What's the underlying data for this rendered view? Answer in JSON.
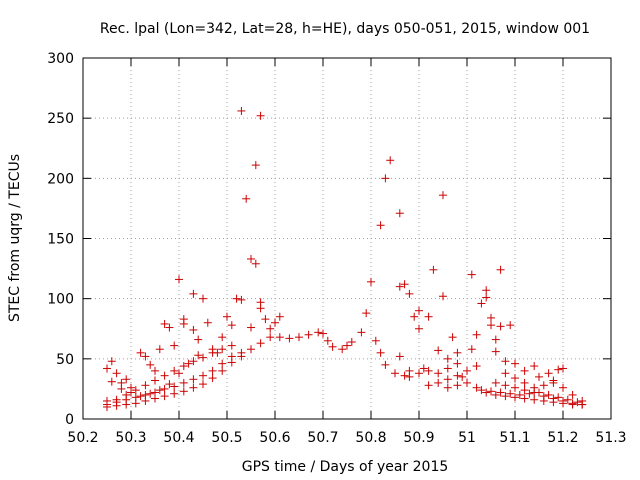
{
  "chart_data": {
    "type": "scatter",
    "title": "Rec. lpal (Lon=342, Lat=28, h=HE), days 050-051, 2015, window 001",
    "xlabel": "GPS time / Days of year 2015",
    "ylabel": "STEC from uqrg / TECUs",
    "xlim": [
      50.2,
      51.3
    ],
    "ylim": [
      0,
      300
    ],
    "xticks": [
      "50.2",
      "50.3",
      "50.4",
      "50.5",
      "50.6",
      "50.7",
      "50.8",
      "50.9",
      "51",
      "51.1",
      "51.2",
      "51.3"
    ],
    "yticks": [
      "0",
      "50",
      "100",
      "150",
      "200",
      "250",
      "300"
    ],
    "grid": true,
    "marker": "+",
    "marker_color": "#cc0000",
    "series": [
      {
        "points": [
          [
            50.25,
            42
          ],
          [
            50.26,
            48
          ],
          [
            50.27,
            38
          ],
          [
            50.28,
            30
          ],
          [
            50.29,
            33
          ],
          [
            50.3,
            26
          ],
          [
            50.32,
            55
          ],
          [
            50.33,
            52
          ],
          [
            50.34,
            45
          ],
          [
            50.35,
            40
          ],
          [
            50.36,
            58
          ],
          [
            50.37,
            79
          ],
          [
            50.38,
            76
          ],
          [
            50.39,
            61
          ],
          [
            50.4,
            116
          ],
          [
            50.41,
            83
          ],
          [
            50.41,
            79
          ],
          [
            50.43,
            104
          ],
          [
            50.43,
            74
          ],
          [
            50.44,
            66
          ],
          [
            50.45,
            100
          ],
          [
            50.46,
            80
          ],
          [
            50.47,
            58
          ],
          [
            50.48,
            55
          ],
          [
            50.49,
            68
          ],
          [
            50.5,
            85
          ],
          [
            50.51,
            78
          ],
          [
            50.52,
            100
          ],
          [
            50.53,
            256
          ],
          [
            50.53,
            99
          ],
          [
            50.54,
            183
          ],
          [
            50.55,
            133
          ],
          [
            50.55,
            76
          ],
          [
            50.56,
            211
          ],
          [
            50.56,
            129
          ],
          [
            50.57,
            252
          ],
          [
            50.57,
            97
          ],
          [
            50.57,
            92
          ],
          [
            50.58,
            83
          ],
          [
            50.59,
            75
          ],
          [
            50.6,
            80
          ],
          [
            50.61,
            85
          ],
          [
            50.25,
            15
          ],
          [
            50.27,
            14
          ],
          [
            50.29,
            16
          ],
          [
            50.31,
            18
          ],
          [
            50.33,
            20
          ],
          [
            50.35,
            22
          ],
          [
            50.37,
            25
          ],
          [
            50.39,
            27
          ],
          [
            50.41,
            30
          ],
          [
            50.43,
            33
          ],
          [
            50.45,
            36
          ],
          [
            50.47,
            40
          ],
          [
            50.49,
            46
          ],
          [
            50.51,
            52
          ],
          [
            50.53,
            55
          ],
          [
            50.55,
            58
          ],
          [
            50.57,
            63
          ],
          [
            50.59,
            68
          ],
          [
            50.61,
            68
          ],
          [
            50.63,
            67
          ],
          [
            50.65,
            68
          ],
          [
            50.67,
            70
          ],
          [
            50.69,
            72
          ],
          [
            50.7,
            71
          ],
          [
            50.71,
            65
          ],
          [
            50.72,
            60
          ],
          [
            50.74,
            58
          ],
          [
            50.75,
            61
          ],
          [
            50.76,
            64
          ],
          [
            50.78,
            72
          ],
          [
            50.79,
            88
          ],
          [
            50.8,
            114
          ],
          [
            50.81,
            65
          ],
          [
            50.82,
            161
          ],
          [
            50.82,
            55
          ],
          [
            50.83,
            200
          ],
          [
            50.83,
            45
          ],
          [
            50.84,
            215
          ],
          [
            50.85,
            38
          ],
          [
            50.86,
            171
          ],
          [
            50.86,
            110
          ],
          [
            50.87,
            112
          ],
          [
            50.86,
            52
          ],
          [
            50.87,
            36
          ],
          [
            50.88,
            104
          ],
          [
            50.88,
            40
          ],
          [
            50.89,
            85
          ],
          [
            50.9,
            90
          ],
          [
            50.9,
            75
          ],
          [
            50.91,
            42
          ],
          [
            50.92,
            85
          ],
          [
            50.93,
            124
          ],
          [
            50.94,
            57
          ],
          [
            50.95,
            186
          ],
          [
            50.95,
            102
          ],
          [
            50.96,
            50
          ],
          [
            50.97,
            68
          ],
          [
            50.98,
            55
          ],
          [
            50.99,
            35
          ],
          [
            51.01,
            120
          ],
          [
            51.01,
            58
          ],
          [
            51.02,
            70
          ],
          [
            51.03,
            96
          ],
          [
            51.04,
            107
          ],
          [
            51.04,
            101
          ],
          [
            51.05,
            84
          ],
          [
            51.05,
            78
          ],
          [
            51.06,
            66
          ],
          [
            51.06,
            56
          ],
          [
            51.07,
            124
          ],
          [
            51.07,
            77
          ],
          [
            51.08,
            48
          ],
          [
            51.09,
            78
          ],
          [
            51.1,
            46
          ],
          [
            51.12,
            40
          ],
          [
            51.14,
            44
          ],
          [
            51.15,
            35
          ],
          [
            51.17,
            38
          ],
          [
            51.18,
            32
          ],
          [
            51.19,
            41
          ],
          [
            51.2,
            42
          ],
          [
            50.25,
            10
          ],
          [
            50.27,
            11
          ],
          [
            50.29,
            12
          ],
          [
            50.31,
            13
          ],
          [
            50.33,
            15
          ],
          [
            50.35,
            17
          ],
          [
            50.37,
            19
          ],
          [
            50.39,
            21
          ],
          [
            50.41,
            23
          ],
          [
            50.43,
            26
          ],
          [
            50.45,
            29
          ],
          [
            50.47,
            34
          ],
          [
            50.49,
            40
          ],
          [
            50.51,
            47
          ],
          [
            50.53,
            52
          ],
          [
            50.25,
            12
          ],
          [
            50.27,
            16
          ],
          [
            50.29,
            20
          ],
          [
            50.31,
            24
          ],
          [
            50.33,
            28
          ],
          [
            50.35,
            32
          ],
          [
            50.37,
            36
          ],
          [
            50.39,
            40
          ],
          [
            50.41,
            44
          ],
          [
            50.43,
            48
          ],
          [
            50.45,
            51
          ],
          [
            50.47,
            55
          ],
          [
            50.49,
            58
          ],
          [
            50.51,
            61
          ],
          [
            50.26,
            31
          ],
          [
            50.28,
            25
          ],
          [
            50.3,
            22
          ],
          [
            50.32,
            19
          ],
          [
            50.34,
            21
          ],
          [
            50.36,
            24
          ],
          [
            50.38,
            29
          ],
          [
            50.4,
            38
          ],
          [
            50.42,
            46
          ],
          [
            50.44,
            53
          ],
          [
            50.92,
            28
          ],
          [
            50.94,
            30
          ],
          [
            50.96,
            33
          ],
          [
            50.98,
            36
          ],
          [
            51.0,
            40
          ],
          [
            51.02,
            44
          ],
          [
            50.96,
            26
          ],
          [
            50.98,
            28
          ],
          [
            51.0,
            30
          ],
          [
            51.02,
            26
          ],
          [
            51.04,
            22
          ],
          [
            51.06,
            20
          ],
          [
            51.08,
            19
          ],
          [
            51.1,
            18
          ],
          [
            51.12,
            17
          ],
          [
            51.14,
            16
          ],
          [
            51.16,
            15
          ],
          [
            51.18,
            14
          ],
          [
            51.2,
            13
          ],
          [
            51.22,
            12
          ],
          [
            51.24,
            12
          ],
          [
            51.03,
            24
          ],
          [
            51.05,
            23
          ],
          [
            51.07,
            22
          ],
          [
            51.09,
            21
          ],
          [
            51.11,
            20
          ],
          [
            51.13,
            21
          ],
          [
            51.15,
            22
          ],
          [
            51.17,
            20
          ],
          [
            51.19,
            18
          ],
          [
            51.21,
            16
          ],
          [
            51.23,
            14
          ],
          [
            51.06,
            30
          ],
          [
            51.08,
            28
          ],
          [
            51.1,
            26
          ],
          [
            51.12,
            24
          ],
          [
            51.14,
            22
          ],
          [
            51.16,
            19
          ],
          [
            51.18,
            17
          ],
          [
            51.2,
            15
          ],
          [
            51.22,
            13
          ],
          [
            51.24,
            12
          ],
          [
            51.08,
            38
          ],
          [
            51.1,
            34
          ],
          [
            51.12,
            30
          ],
          [
            51.14,
            26
          ],
          [
            51.16,
            28
          ],
          [
            51.18,
            30
          ],
          [
            51.2,
            26
          ],
          [
            51.22,
            20
          ],
          [
            51.24,
            15
          ],
          [
            50.88,
            35
          ],
          [
            50.9,
            38
          ],
          [
            50.92,
            40
          ],
          [
            50.94,
            38
          ],
          [
            50.96,
            42
          ],
          [
            50.98,
            46
          ]
        ]
      }
    ]
  }
}
